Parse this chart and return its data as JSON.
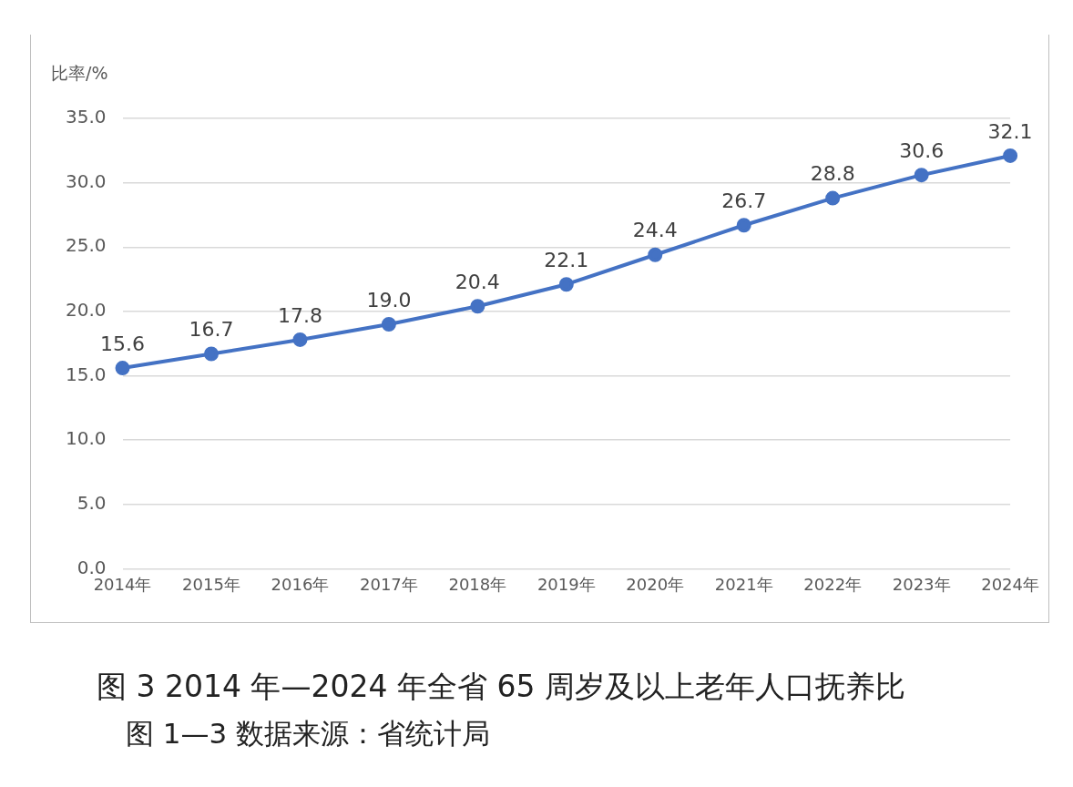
{
  "chart_data": {
    "type": "line",
    "title": "图 3   2014 年—2024 年全省 65 周岁及以上老年人口抚养比",
    "ylabel": "比率/%",
    "annotations": [
      "图 1—3 数据来源：省统计局"
    ],
    "categories": [
      "2014年",
      "2015年",
      "2016年",
      "2017年",
      "2018年",
      "2019年",
      "2020年",
      "2021年",
      "2022年",
      "2023年",
      "2024年"
    ],
    "series": [
      {
        "color": "#4472c4",
        "values": [
          15.6,
          16.7,
          17.8,
          19.0,
          20.4,
          22.1,
          24.4,
          26.7,
          28.8,
          30.6,
          32.1
        ],
        "value_labels": [
          "15.6",
          "16.7",
          "17.8",
          "19.0",
          "20.4",
          "22.1",
          "24.4",
          "26.7",
          "28.8",
          "30.6",
          "32.1"
        ]
      }
    ],
    "ylim": [
      0,
      35
    ],
    "yticks": [
      {
        "value": 0,
        "label": "0.0"
      },
      {
        "value": 5,
        "label": "5.0"
      },
      {
        "value": 10,
        "label": "10.0"
      },
      {
        "value": 15,
        "label": "15.0"
      },
      {
        "value": 20,
        "label": "20.0"
      },
      {
        "value": 25,
        "label": "25.0"
      },
      {
        "value": 30,
        "label": "30.0"
      },
      {
        "value": 35,
        "label": "35.0"
      }
    ],
    "grid": "y",
    "legend": false,
    "marker": "circle",
    "line_style": "solid"
  }
}
